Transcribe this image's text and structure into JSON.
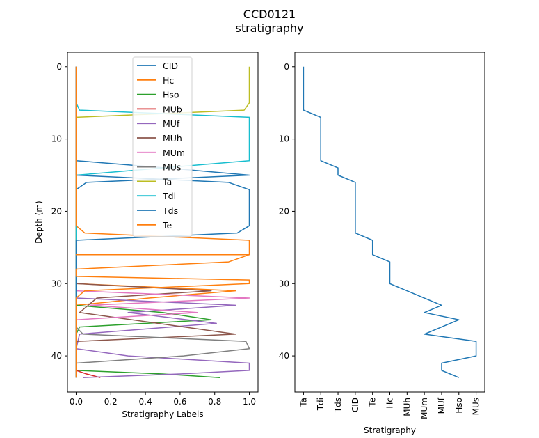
{
  "figure": {
    "title_line1": "CCD0121",
    "title_line2": "stratigraphy"
  },
  "chart_data": [
    {
      "type": "line",
      "title": "",
      "xlabel": "Stratigraphy Labels",
      "ylabel": "Depth (m)",
      "xlim": [
        -0.05,
        1.05
      ],
      "ylim": [
        45,
        -2
      ],
      "y_inverted": true,
      "xticks": [
        0.0,
        0.2,
        0.4,
        0.6,
        0.8,
        1.0
      ],
      "xtick_labels": [
        "0.0",
        "0.2",
        "0.4",
        "0.6",
        "0.8",
        "1.0"
      ],
      "yticks": [
        0,
        10,
        20,
        30,
        40
      ],
      "ytick_labels": [
        "0",
        "10",
        "20",
        "30",
        "40"
      ],
      "legend_position": "top-center",
      "grid": false,
      "series": [
        {
          "name": "CID",
          "color": "#1f77b4",
          "points": [
            [
              0,
              0
            ],
            [
              0,
              13
            ],
            [
              0.52,
              14
            ],
            [
              1,
              15
            ],
            [
              0.06,
              16
            ],
            [
              0,
              17
            ],
            [
              0,
              43
            ]
          ]
        },
        {
          "name": "Hc",
          "color": "#ff7f0e",
          "points": [
            [
              0,
              0
            ],
            [
              0,
              30
            ],
            [
              0.92,
              31
            ],
            [
              0.42,
              32
            ],
            [
              0,
              33
            ],
            [
              0,
              43
            ]
          ]
        },
        {
          "name": "Hso",
          "color": "#2ca02c",
          "points": [
            [
              0,
              0
            ],
            [
              0,
              33
            ],
            [
              0.5,
              34
            ],
            [
              0.78,
              35
            ],
            [
              0.02,
              36
            ],
            [
              0,
              37
            ],
            [
              0,
              42
            ],
            [
              0.5,
              42.5
            ],
            [
              0.83,
              43
            ]
          ]
        },
        {
          "name": "MUb",
          "color": "#d62728",
          "points": [
            [
              0,
              0
            ],
            [
              0,
              42
            ],
            [
              0.06,
              42.5
            ],
            [
              0.14,
              43
            ]
          ]
        },
        {
          "name": "MUf",
          "color": "#9467bd",
          "points": [
            [
              0,
              0
            ],
            [
              0,
              32
            ],
            [
              0.92,
              33
            ],
            [
              0.3,
              34
            ],
            [
              0.81,
              35.5
            ],
            [
              0.02,
              37
            ],
            [
              0,
              39
            ],
            [
              0.3,
              40
            ],
            [
              1,
              41
            ],
            [
              1,
              42
            ],
            [
              0.6,
              42.5
            ],
            [
              0.04,
              43
            ]
          ]
        },
        {
          "name": "MUh",
          "color": "#8c564b",
          "points": [
            [
              0,
              0
            ],
            [
              0,
              30
            ],
            [
              0.78,
              31
            ],
            [
              0.12,
              32
            ],
            [
              0.02,
              34
            ],
            [
              0.92,
              37
            ],
            [
              0,
              38
            ],
            [
              0,
              43
            ]
          ]
        },
        {
          "name": "MUm",
          "color": "#e377c2",
          "points": [
            [
              0,
              0
            ],
            [
              0,
              31
            ],
            [
              1,
              32
            ],
            [
              0.08,
              33
            ],
            [
              0.7,
              34
            ],
            [
              0,
              35
            ],
            [
              0,
              43
            ]
          ]
        },
        {
          "name": "MUs",
          "color": "#7f7f7f",
          "points": [
            [
              0,
              0
            ],
            [
              0,
              36
            ],
            [
              0.04,
              37
            ],
            [
              0.98,
              38
            ],
            [
              1,
              39
            ],
            [
              0.62,
              40
            ],
            [
              0,
              41
            ],
            [
              0,
              43
            ]
          ]
        },
        {
          "name": "Ta",
          "color": "#bcbd22",
          "points": [
            [
              1,
              0
            ],
            [
              1,
              5
            ],
            [
              0.97,
              6
            ],
            [
              0,
              7
            ],
            [
              0,
              43
            ]
          ]
        },
        {
          "name": "Tdi",
          "color": "#17becf",
          "points": [
            [
              0,
              0
            ],
            [
              0,
              5
            ],
            [
              0.02,
              6
            ],
            [
              1,
              7
            ],
            [
              1,
              13
            ],
            [
              0,
              15
            ],
            [
              0,
              43
            ]
          ]
        },
        {
          "name": "Tds",
          "color": "#1f77b4",
          "points": [
            [
              0,
              0
            ],
            [
              0,
              15
            ],
            [
              0.88,
              16
            ],
            [
              1,
              17
            ],
            [
              1,
              22
            ],
            [
              0.93,
              23
            ],
            [
              0,
              24
            ],
            [
              0,
              43
            ]
          ]
        },
        {
          "name": "Te",
          "color": "#ff7f0e",
          "points": [
            [
              0,
              0
            ],
            [
              0,
              22
            ],
            [
              0.05,
              23
            ],
            [
              1,
              24
            ],
            [
              1,
              26
            ],
            [
              0,
              26
            ],
            [
              1,
              26
            ],
            [
              0.88,
              27
            ],
            [
              0,
              28
            ],
            [
              0.0,
              29
            ],
            [
              1,
              29.5
            ],
            [
              1,
              30
            ],
            [
              0.05,
              31
            ],
            [
              0,
              32
            ],
            [
              0,
              43
            ]
          ]
        }
      ]
    },
    {
      "type": "line",
      "title": "",
      "xlabel": "Stratigraphy",
      "ylabel": "",
      "categories": [
        "Ta",
        "Tdi",
        "Tds",
        "CID",
        "Te",
        "Hc",
        "MUh",
        "MUm",
        "MUf",
        "Hso",
        "MUs"
      ],
      "ylim": [
        45,
        -2
      ],
      "y_inverted": true,
      "yticks": [
        0,
        10,
        20,
        30,
        40
      ],
      "ytick_labels": [
        "0",
        "10",
        "20",
        "30",
        "40"
      ],
      "grid": false,
      "series": [
        {
          "color": "#1f77b4",
          "points": [
            [
              "Ta",
              0
            ],
            [
              "Ta",
              6
            ],
            [
              "Tdi",
              7
            ],
            [
              "Tdi",
              13
            ],
            [
              "Tds",
              14
            ],
            [
              "Tds",
              15
            ],
            [
              "CID",
              16
            ],
            [
              "CID",
              23
            ],
            [
              "Te",
              24
            ],
            [
              "Te",
              26
            ],
            [
              "Hc",
              27
            ],
            [
              "Hc",
              30
            ],
            [
              "MUf",
              33
            ],
            [
              "MUm",
              34
            ],
            [
              "Hso",
              35
            ],
            [
              "MUf",
              36
            ],
            [
              "MUm",
              37
            ],
            [
              "MUs",
              38
            ],
            [
              "MUs",
              40
            ],
            [
              "MUf",
              41
            ],
            [
              "MUf",
              42
            ],
            [
              "Hso",
              43
            ]
          ]
        }
      ]
    }
  ]
}
